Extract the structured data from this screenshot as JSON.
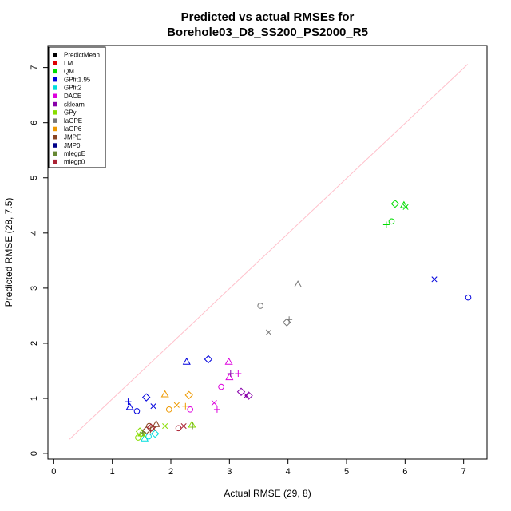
{
  "chart_data": {
    "type": "scatter",
    "title_line1": "Predicted vs actual RMSEs for",
    "title_line2": "Borehole03_D8_SS200_PS2000_R5",
    "xlabel": "Actual RMSE (29, 8)",
    "ylabel": "Predicted RMSE (28, 7.5)",
    "xlim": [
      -0.1,
      7.4
    ],
    "ylim": [
      -0.1,
      7.4
    ],
    "xticks": [
      "0",
      "1",
      "2",
      "3",
      "4",
      "5",
      "6",
      "7"
    ],
    "yticks": [
      "0",
      "1",
      "2",
      "3",
      "4",
      "5",
      "6",
      "7"
    ],
    "grid": false,
    "legend_position": "top-left",
    "reference_line": {
      "from": [
        0.27,
        0.26
      ],
      "to": [
        7.07,
        7.06
      ],
      "color": "#ffc0cb"
    },
    "series": [
      {
        "name": "PredictMean",
        "color": "#000000",
        "points": []
      },
      {
        "name": "LM",
        "color": "#dd0000",
        "points": []
      },
      {
        "name": "QM",
        "color": "#00dd00",
        "points": [
          {
            "x": 5.83,
            "y": 4.53,
            "shape": "diamond"
          },
          {
            "x": 5.77,
            "y": 4.21,
            "shape": "circle"
          },
          {
            "x": 5.68,
            "y": 4.15,
            "shape": "plus"
          },
          {
            "x": 6.01,
            "y": 4.47,
            "shape": "x"
          },
          {
            "x": 5.98,
            "y": 4.5,
            "shape": "triangle"
          }
        ]
      },
      {
        "name": "GPfit1.95",
        "color": "#0000dd",
        "points": [
          {
            "x": 7.08,
            "y": 2.83,
            "shape": "circle"
          },
          {
            "x": 6.5,
            "y": 3.16,
            "shape": "x"
          },
          {
            "x": 1.58,
            "y": 1.02,
            "shape": "diamond"
          },
          {
            "x": 1.3,
            "y": 0.84,
            "shape": "triangle"
          },
          {
            "x": 1.27,
            "y": 0.94,
            "shape": "plus"
          },
          {
            "x": 1.7,
            "y": 0.86,
            "shape": "x"
          },
          {
            "x": 1.42,
            "y": 0.77,
            "shape": "circle"
          },
          {
            "x": 2.27,
            "y": 1.66,
            "shape": "triangle"
          },
          {
            "x": 2.64,
            "y": 1.71,
            "shape": "diamond"
          }
        ]
      },
      {
        "name": "GPfit2",
        "color": "#00dddd",
        "points": [
          {
            "x": 1.55,
            "y": 0.27,
            "shape": "triangle"
          },
          {
            "x": 1.73,
            "y": 0.36,
            "shape": "diamond"
          },
          {
            "x": 1.62,
            "y": 0.31,
            "shape": "circle"
          }
        ]
      },
      {
        "name": "DACE",
        "color": "#dd00dd",
        "points": [
          {
            "x": 2.99,
            "y": 1.66,
            "shape": "triangle"
          },
          {
            "x": 3.0,
            "y": 1.38,
            "shape": "triangle"
          },
          {
            "x": 3.15,
            "y": 1.45,
            "shape": "plus"
          },
          {
            "x": 2.86,
            "y": 1.21,
            "shape": "circle"
          },
          {
            "x": 2.74,
            "y": 0.92,
            "shape": "x"
          },
          {
            "x": 2.79,
            "y": 0.8,
            "shape": "plus"
          },
          {
            "x": 2.33,
            "y": 0.8,
            "shape": "circle"
          }
        ]
      },
      {
        "name": "sklearn",
        "color": "#8800aa",
        "points": [
          {
            "x": 3.2,
            "y": 1.12,
            "shape": "diamond"
          },
          {
            "x": 3.29,
            "y": 1.05,
            "shape": "x"
          },
          {
            "x": 3.33,
            "y": 1.05,
            "shape": "diamond"
          },
          {
            "x": 3.02,
            "y": 1.45,
            "shape": "plus"
          }
        ]
      },
      {
        "name": "GPy",
        "color": "#88dd00",
        "points": [
          {
            "x": 1.47,
            "y": 0.4,
            "shape": "diamond"
          },
          {
            "x": 1.44,
            "y": 0.29,
            "shape": "circle"
          },
          {
            "x": 1.53,
            "y": 0.34,
            "shape": "x"
          },
          {
            "x": 1.5,
            "y": 0.36,
            "shape": "triangle"
          },
          {
            "x": 1.9,
            "y": 0.5,
            "shape": "x"
          },
          {
            "x": 2.36,
            "y": 0.52,
            "shape": "triangle"
          }
        ]
      },
      {
        "name": "laGPE",
        "color": "#777777",
        "points": [
          {
            "x": 4.17,
            "y": 3.06,
            "shape": "triangle"
          },
          {
            "x": 3.53,
            "y": 2.68,
            "shape": "circle"
          },
          {
            "x": 3.98,
            "y": 2.38,
            "shape": "diamond"
          },
          {
            "x": 4.02,
            "y": 2.43,
            "shape": "plus"
          },
          {
            "x": 3.67,
            "y": 2.2,
            "shape": "x"
          }
        ]
      },
      {
        "name": "laGP6",
        "color": "#ee9900",
        "points": [
          {
            "x": 1.9,
            "y": 1.07,
            "shape": "triangle"
          },
          {
            "x": 2.31,
            "y": 1.06,
            "shape": "diamond"
          },
          {
            "x": 1.97,
            "y": 0.8,
            "shape": "circle"
          },
          {
            "x": 2.1,
            "y": 0.88,
            "shape": "x"
          },
          {
            "x": 2.25,
            "y": 0.86,
            "shape": "plus"
          }
        ]
      },
      {
        "name": "JMPE",
        "color": "#884422",
        "points": [
          {
            "x": 1.75,
            "y": 0.53,
            "shape": "triangle"
          },
          {
            "x": 1.65,
            "y": 0.43,
            "shape": "plus"
          },
          {
            "x": 1.63,
            "y": 0.5,
            "shape": "circle"
          },
          {
            "x": 1.58,
            "y": 0.42,
            "shape": "diamond"
          },
          {
            "x": 1.71,
            "y": 0.45,
            "shape": "x"
          }
        ]
      },
      {
        "name": "JMP0",
        "color": "#000088",
        "points": []
      },
      {
        "name": "mlegpE",
        "color": "#668833",
        "points": [
          {
            "x": 1.52,
            "y": 0.38,
            "shape": "plus"
          },
          {
            "x": 2.37,
            "y": 0.5,
            "shape": "plus"
          }
        ]
      },
      {
        "name": "mlegp0",
        "color": "#aa2233",
        "points": [
          {
            "x": 2.13,
            "y": 0.46,
            "shape": "circle"
          },
          {
            "x": 2.22,
            "y": 0.5,
            "shape": "x"
          },
          {
            "x": 1.66,
            "y": 0.47,
            "shape": "diamond"
          }
        ]
      }
    ]
  }
}
